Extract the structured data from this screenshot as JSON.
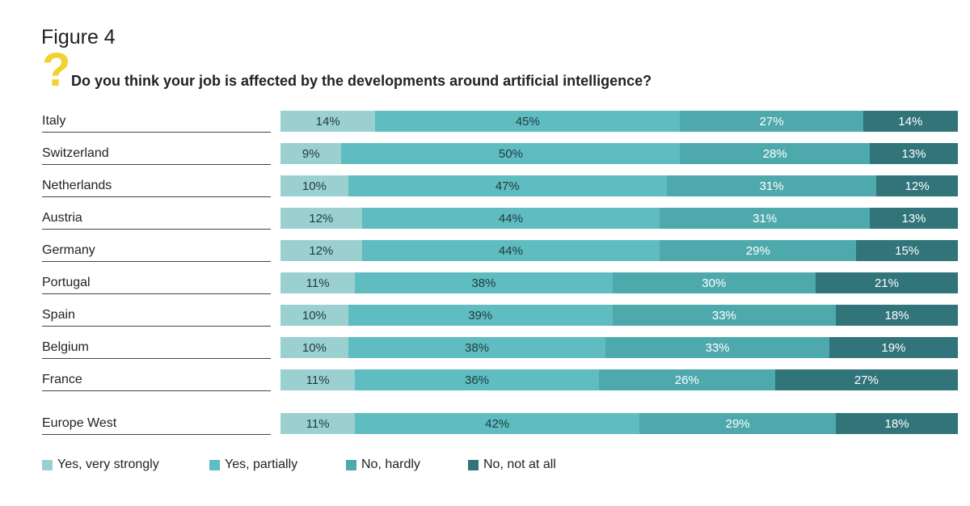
{
  "figure_label": "Figure 4",
  "question": "Do you think your job is affected by the developments around artificial intelligence?",
  "colors": {
    "yes_very_strongly": "#9bd0d1",
    "yes_partially": "#5fbcc0",
    "no_hardly": "#4ea9ad",
    "no_not_at_all": "#31757a"
  },
  "chart_data": {
    "type": "bar",
    "orientation": "horizontal",
    "stacked": true,
    "unit": "%",
    "categories": [
      "Italy",
      "Switzerland",
      "Netherlands",
      "Austria",
      "Germany",
      "Portugal",
      "Spain",
      "Belgium",
      "France",
      "Europe West"
    ],
    "series": [
      {
        "name": "Yes, very strongly",
        "values": [
          14,
          9,
          10,
          12,
          12,
          11,
          10,
          10,
          11,
          11
        ]
      },
      {
        "name": "Yes, partially",
        "values": [
          45,
          50,
          47,
          44,
          44,
          38,
          39,
          38,
          36,
          42
        ]
      },
      {
        "name": "No, hardly",
        "values": [
          27,
          28,
          31,
          31,
          29,
          30,
          33,
          33,
          26,
          29
        ]
      },
      {
        "name": "No, not at all",
        "values": [
          14,
          13,
          12,
          13,
          15,
          21,
          18,
          19,
          27,
          18
        ]
      }
    ],
    "legend_position": "bottom",
    "grid": false
  }
}
